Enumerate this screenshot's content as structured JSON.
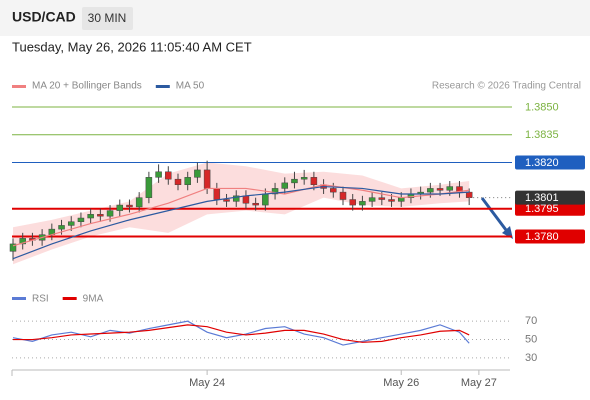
{
  "chart_data": {
    "type": "candlestick",
    "symbol": "USD/CAD",
    "timeframe": "30 MIN",
    "timestamp": "Tuesday, May 26, 2026 11:05:40 AM CET",
    "credit": "Research © 2026 Trading Central",
    "up_color": "#3a9a3a",
    "down_color": "#d62728",
    "open": [
      1.3772,
      1.3776,
      1.3779,
      1.3778,
      1.3781,
      1.3784,
      1.3786,
      1.3788,
      1.379,
      1.3792,
      1.3791,
      1.3794,
      1.3797,
      1.3796,
      1.3801,
      1.3812,
      1.3815,
      1.3811,
      1.3808,
      1.3812,
      1.3816,
      1.3806,
      1.38,
      1.3799,
      1.3802,
      1.3798,
      1.3797,
      1.3803,
      1.3806,
      1.3809,
      1.3811,
      1.3812,
      1.3808,
      1.3806,
      1.3804,
      1.38,
      1.3797,
      1.3799,
      1.3801,
      1.38,
      1.3799,
      1.3801,
      1.3803,
      1.3804,
      1.3806,
      1.3805,
      1.3807,
      1.3804
    ],
    "high": [
      1.3779,
      1.3782,
      1.3782,
      1.3784,
      1.3787,
      1.3789,
      1.3791,
      1.3793,
      1.3795,
      1.3795,
      1.3797,
      1.38,
      1.38,
      1.3804,
      1.3815,
      1.3819,
      1.3818,
      1.3814,
      1.3815,
      1.382,
      1.3821,
      1.3809,
      1.3803,
      1.3805,
      1.3805,
      1.3801,
      1.3806,
      1.3809,
      1.3812,
      1.3815,
      1.3816,
      1.3815,
      1.3811,
      1.3809,
      1.3807,
      1.3803,
      1.3802,
      1.3804,
      1.3804,
      1.3803,
      1.3804,
      1.3806,
      1.3807,
      1.3809,
      1.3809,
      1.381,
      1.381,
      1.3806
    ],
    "low": [
      1.3767,
      1.3773,
      1.3775,
      1.3775,
      1.3778,
      1.3781,
      1.3783,
      1.3785,
      1.3787,
      1.3788,
      1.3788,
      1.3791,
      1.3793,
      1.3793,
      1.3798,
      1.3809,
      1.3808,
      1.3805,
      1.3805,
      1.3809,
      1.3803,
      1.3797,
      1.3796,
      1.3796,
      1.3795,
      1.3794,
      1.3794,
      1.38,
      1.3803,
      1.3806,
      1.3808,
      1.3805,
      1.3803,
      1.3801,
      1.3797,
      1.3794,
      1.3794,
      1.3796,
      1.3797,
      1.3796,
      1.3796,
      1.3798,
      1.38,
      1.3801,
      1.3802,
      1.3802,
      1.3801,
      1.3797
    ],
    "close": [
      1.3776,
      1.3779,
      1.3778,
      1.3781,
      1.3784,
      1.3786,
      1.3788,
      1.379,
      1.3792,
      1.3791,
      1.3794,
      1.3797,
      1.3796,
      1.3801,
      1.3812,
      1.3815,
      1.3811,
      1.3808,
      1.3812,
      1.3816,
      1.3806,
      1.38,
      1.3799,
      1.3802,
      1.3798,
      1.3797,
      1.3803,
      1.3806,
      1.3809,
      1.3811,
      1.3812,
      1.3808,
      1.3806,
      1.3804,
      1.38,
      1.3797,
      1.3799,
      1.3801,
      1.38,
      1.3799,
      1.3801,
      1.3803,
      1.3804,
      1.3806,
      1.3805,
      1.3807,
      1.3804,
      1.3801
    ],
    "series": [
      {
        "name": "MA 20 + Bollinger Bands",
        "color": "#f08080",
        "band_color": "#fbd5d5",
        "x": [
          0,
          4,
          8,
          12,
          16,
          20,
          24,
          28,
          32,
          36,
          40,
          44,
          47
        ],
        "values": [
          1.3775,
          1.3781,
          1.3787,
          1.3792,
          1.3798,
          1.3806,
          1.3806,
          1.3803,
          1.3808,
          1.3805,
          1.3801,
          1.3803,
          1.3805
        ],
        "upper": [
          1.3785,
          1.3789,
          1.3794,
          1.3799,
          1.3814,
          1.382,
          1.3818,
          1.3814,
          1.3815,
          1.3813,
          1.3806,
          1.3808,
          1.381
        ],
        "lower": [
          1.3765,
          1.3773,
          1.378,
          1.3785,
          1.3782,
          1.3792,
          1.3794,
          1.3792,
          1.3801,
          1.3797,
          1.3796,
          1.3798,
          1.3799
        ]
      },
      {
        "name": "MA 50",
        "color": "#2c5aa0",
        "x": [
          0,
          4,
          8,
          12,
          16,
          20,
          24,
          28,
          32,
          36,
          40,
          44,
          47
        ],
        "values": [
          1.3768,
          1.3776,
          1.3783,
          1.3789,
          1.3794,
          1.3799,
          1.3802,
          1.3804,
          1.3807,
          1.3806,
          1.3803,
          1.3803,
          1.3804
        ]
      }
    ],
    "ylim": [
      1.37565,
      1.38565
    ],
    "xlim": [
      0,
      51
    ],
    "xticks": [
      {
        "value": 20,
        "label": "May 24"
      },
      {
        "value": 40,
        "label": "May 26"
      },
      {
        "value": 48,
        "label": "May 27"
      }
    ],
    "levels": [
      {
        "value": 1.385,
        "label": "1.3850",
        "color": "#7cb342",
        "box": false
      },
      {
        "value": 1.3835,
        "label": "1.3835",
        "color": "#7cb342",
        "box": false
      },
      {
        "value": 1.382,
        "label": "1.3820",
        "color": "#1f5fbf",
        "box": true
      },
      {
        "value": 1.3795,
        "label": "1.3795",
        "color": "#e00000",
        "box": true
      },
      {
        "value": 1.378,
        "label": "1.3780",
        "color": "#e00000",
        "box": true
      }
    ],
    "last": {
      "value": 1.3801,
      "label": "1.3801",
      "color": "#333333"
    },
    "indicator": {
      "ylim": [
        19,
        80
      ],
      "yticks": [
        70,
        50,
        30
      ],
      "series": [
        {
          "name": "RSI",
          "color": "#5b7bd5",
          "x": [
            0,
            2,
            4,
            6,
            8,
            10,
            12,
            14,
            16,
            18,
            20,
            22,
            24,
            26,
            28,
            30,
            32,
            34,
            36,
            38,
            40,
            42,
            44,
            46,
            47
          ],
          "values": [
            52,
            48,
            55,
            58,
            53,
            60,
            57,
            62,
            66,
            70,
            58,
            52,
            56,
            62,
            64,
            56,
            52,
            44,
            48,
            52,
            56,
            60,
            66,
            58,
            46
          ]
        },
        {
          "name": "9MA",
          "color": "#e00000",
          "x": [
            0,
            2,
            4,
            6,
            8,
            10,
            12,
            14,
            16,
            18,
            20,
            22,
            24,
            26,
            28,
            30,
            32,
            34,
            36,
            38,
            40,
            42,
            44,
            46,
            47
          ],
          "values": [
            50,
            50,
            52,
            55,
            56,
            57,
            58,
            60,
            63,
            66,
            64,
            58,
            55,
            57,
            60,
            60,
            56,
            50,
            47,
            48,
            52,
            55,
            59,
            60,
            55
          ]
        }
      ]
    }
  }
}
